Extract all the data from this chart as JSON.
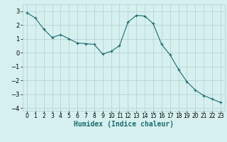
{
  "x": [
    0,
    1,
    2,
    3,
    4,
    5,
    6,
    7,
    8,
    9,
    10,
    11,
    12,
    13,
    14,
    15,
    16,
    17,
    18,
    19,
    20,
    21,
    22,
    23
  ],
  "y": [
    2.9,
    2.5,
    1.7,
    1.1,
    1.3,
    1.0,
    0.7,
    0.65,
    0.6,
    -0.1,
    0.1,
    0.5,
    2.2,
    2.7,
    2.65,
    2.1,
    0.6,
    -0.15,
    -1.2,
    -2.1,
    -2.7,
    -3.1,
    -3.35,
    -3.6
  ],
  "line_color": "#1a6b6b",
  "marker": "+",
  "marker_size": 3,
  "bg_color": "#d6f0f0",
  "grid_color": "#b0cece",
  "xlabel": "Humidex (Indice chaleur)",
  "ylim": [
    -4.2,
    3.5
  ],
  "xlim": [
    -0.5,
    23.5
  ],
  "yticks": [
    -4,
    -3,
    -2,
    -1,
    0,
    1,
    2,
    3
  ],
  "xticks": [
    0,
    1,
    2,
    3,
    4,
    5,
    6,
    7,
    8,
    9,
    10,
    11,
    12,
    13,
    14,
    15,
    16,
    17,
    18,
    19,
    20,
    21,
    22,
    23
  ],
  "tick_fontsize": 5.5,
  "ytick_fontsize": 6.0,
  "xlabel_fontsize": 7.0
}
